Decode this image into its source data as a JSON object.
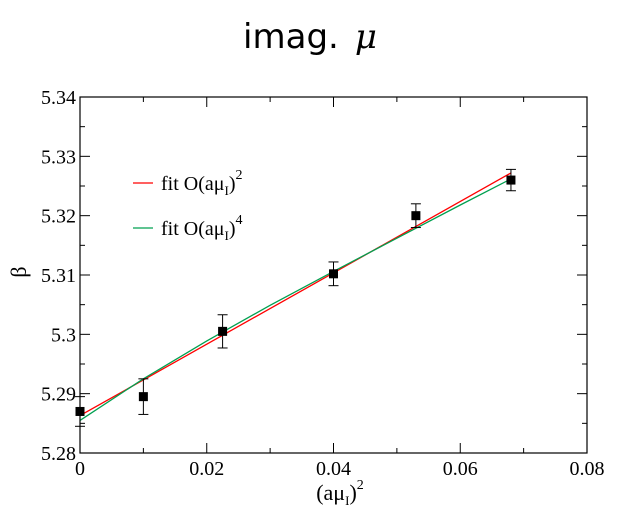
{
  "chart_data": {
    "type": "scatter",
    "title_text": "imag.",
    "title_symbol": "μ",
    "xlabel_base": "(aμ",
    "xlabel_sub": "I",
    "xlabel_close": ")",
    "xlabel_sup": "2",
    "ylabel": "β",
    "xlim": [
      0,
      0.08
    ],
    "ylim": [
      5.28,
      5.34
    ],
    "x_ticks": [
      0,
      0.02,
      0.04,
      0.06,
      0.08
    ],
    "x_tick_labels": [
      "0",
      "0.02",
      "0.04",
      "0.06",
      "0.08"
    ],
    "y_ticks": [
      5.28,
      5.29,
      5.3,
      5.31,
      5.32,
      5.33,
      5.34
    ],
    "y_tick_labels": [
      "5.28",
      "5.29",
      "5.3",
      "5.31",
      "5.32",
      "5.33",
      "5.34"
    ],
    "grid": false,
    "legend_position": "upper-left",
    "points": {
      "x": [
        0,
        0.01,
        0.0225,
        0.04,
        0.053,
        0.068
      ],
      "y": [
        5.287,
        5.2895,
        5.3005,
        5.3102,
        5.32,
        5.326
      ],
      "yerr": [
        0.0025,
        0.003,
        0.0028,
        0.002,
        0.002,
        0.0018
      ],
      "color": "#000000"
    },
    "fits": [
      {
        "label_base": "fit O(aμ",
        "label_sub": "I",
        "label_close": ")",
        "label_sup": "2",
        "color": "#ff0000",
        "x": [
          0,
          0.068
        ],
        "y": [
          5.2863,
          5.3272
        ]
      },
      {
        "label_base": "fit O(aμ",
        "label_sub": "I",
        "label_close": ")",
        "label_sup": "4",
        "color": "#00a050",
        "x": [
          0,
          0.01,
          0.02,
          0.03,
          0.04,
          0.05,
          0.06,
          0.068
        ],
        "y": [
          5.2855,
          5.2925,
          5.2989,
          5.3049,
          5.3106,
          5.3162,
          5.3218,
          5.3262
        ]
      }
    ]
  }
}
